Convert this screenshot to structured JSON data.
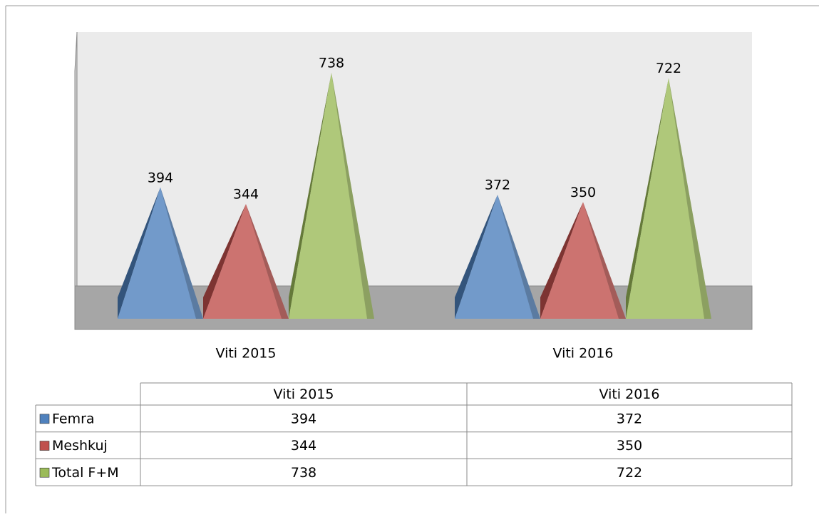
{
  "chart_data": {
    "type": "pyramid",
    "categories": [
      "Viti 2015",
      "Viti 2016"
    ],
    "series": [
      {
        "name": "Femra",
        "color": "#4f81bd",
        "values": [
          394,
          372
        ]
      },
      {
        "name": "Meshkuj",
        "color": "#c0504d",
        "values": [
          344,
          350
        ]
      },
      {
        "name": "Total F+M",
        "color": "#9bbb59",
        "values": [
          738,
          722
        ]
      }
    ],
    "ylim": [
      0,
      800
    ]
  }
}
